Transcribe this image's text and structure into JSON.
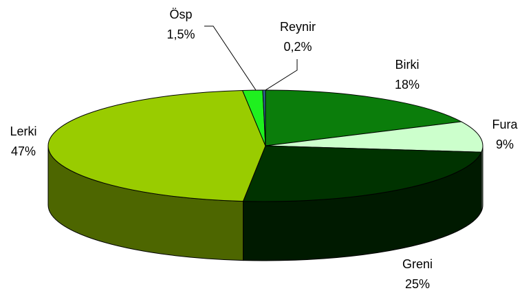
{
  "chart_data": {
    "type": "pie",
    "categories": [
      "Birki",
      "Fura",
      "Greni",
      "Lerki",
      "Ösp",
      "Reynir"
    ],
    "values": [
      18,
      9,
      25,
      47,
      1.5,
      0.2
    ],
    "value_labels": [
      "18%",
      "9%",
      "25%",
      "47%",
      "1,5%",
      "0,2%"
    ],
    "colors": [
      "#0b7d0b",
      "#ccffcc",
      "#003300",
      "#99cc00",
      "#1ff01f",
      "#336699"
    ]
  }
}
